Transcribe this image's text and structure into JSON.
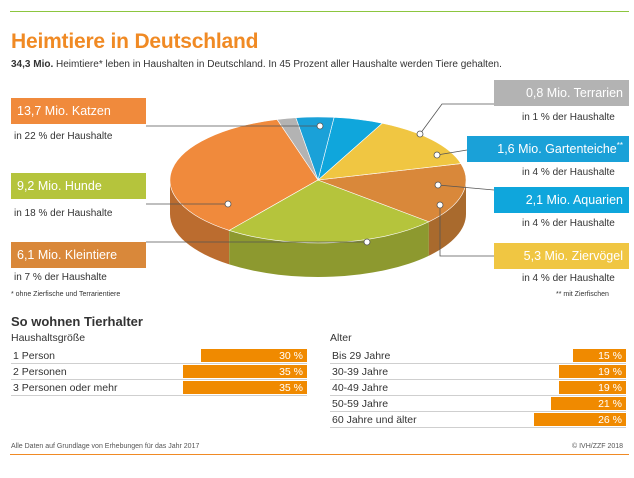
{
  "header": {
    "title": "Heimtiere in Deutschland",
    "subtitle_bold": "34,3 Mio.",
    "subtitle_rest": " Heimtiere* leben in Haushalten in Deutschland. In 45 Prozent aller Haushalte werden Tiere gehalten."
  },
  "colors": {
    "katzen": "#f08a3c",
    "hunde": "#b5c43c",
    "kleintiere": "#d9883a",
    "terrarien": "#b3b3b3",
    "gartenteiche": "#1aa1d8",
    "aquarien": "#0fa6dc",
    "ziervoegel": "#f0c642",
    "accent_orange": "#f08a00"
  },
  "chart_data": {
    "type": "pie",
    "unit": "Mio.",
    "categories": [
      "Katzen",
      "Hunde",
      "Kleintiere",
      "Ziervögel",
      "Aquarien",
      "Gartenteiche",
      "Terrarien"
    ],
    "values": [
      13.7,
      9.2,
      6.1,
      5.3,
      2.1,
      1.6,
      0.8
    ],
    "total": 34.3,
    "labels": {
      "katzen": "13,7 Mio. Katzen",
      "hunde": "9,2 Mio. Hunde",
      "kleintiere": "6,1 Mio. Kleintiere",
      "terrarien": "0,8 Mio. Terrarien",
      "gartenteiche": "1,6 Mio. Gartenteiche",
      "gartenteiche_sup": "**",
      "aquarien": "2,1 Mio. Aquarien",
      "ziervoegel": "5,3 Mio. Ziervögel"
    },
    "household_shares": {
      "katzen": "in 22 % der Haushalte",
      "hunde": "in 18 % der Haushalte",
      "kleintiere": "in 7 % der Haushalte",
      "terrarien": "in 1 % der Haushalte",
      "gartenteiche": "in 4 % der Haushalte",
      "aquarien": "in 4 % der Haushalte",
      "ziervoegel": "in 4 % der Haushalte"
    }
  },
  "notes": {
    "left": "* ohne Zierfische und Terrarientiere",
    "right": "** mit Zierfischen"
  },
  "tables": {
    "section_title": "So wohnen Tierhalter",
    "haushalt": {
      "heading": "Haushaltsgröße",
      "rows": [
        {
          "label": "1 Person",
          "value": "30 %",
          "pct": 30
        },
        {
          "label": "2 Personen",
          "value": "35 %",
          "pct": 35
        },
        {
          "label": "3 Personen oder mehr",
          "value": "35 %",
          "pct": 35
        }
      ]
    },
    "alter": {
      "heading": "Alter",
      "rows": [
        {
          "label": "Bis 29 Jahre",
          "value": "15 %",
          "pct": 15
        },
        {
          "label": "30-39 Jahre",
          "value": "19 %",
          "pct": 19
        },
        {
          "label": "40-49 Jahre",
          "value": "19 %",
          "pct": 19
        },
        {
          "label": "50-59 Jahre",
          "value": "21 %",
          "pct": 21
        },
        {
          "label": "60 Jahre und älter",
          "value": "26 %",
          "pct": 26
        }
      ]
    }
  },
  "footer": {
    "left": "Alle Daten auf Grundlage von Erhebungen für das Jahr 2017",
    "right": "© IVH/ZZF 2018"
  }
}
